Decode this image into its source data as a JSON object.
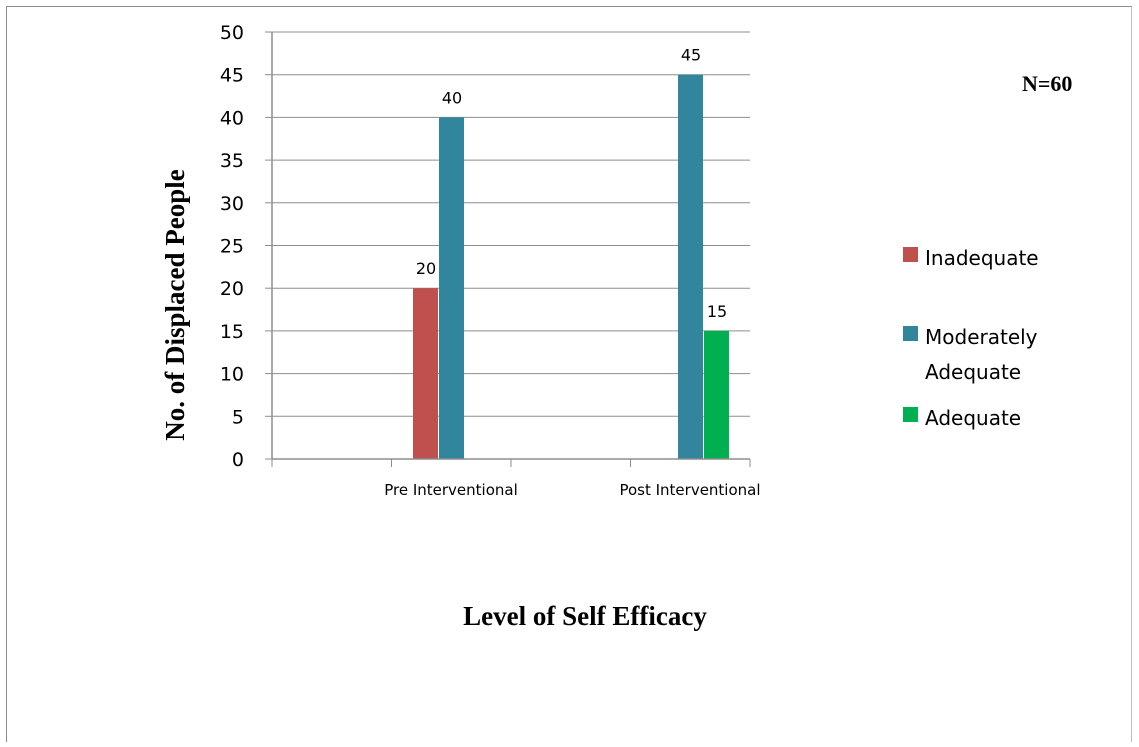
{
  "chart_data": {
    "type": "bar",
    "categories": [
      "Pre Interventional",
      "Post Interventional"
    ],
    "series": [
      {
        "name": "Inadequate",
        "values": [
          20,
          0
        ],
        "color": "#c0504d",
        "labels": [
          "20",
          ""
        ]
      },
      {
        "name": "Moderately Adequate",
        "values": [
          40,
          45
        ],
        "color": "#31859c",
        "labels": [
          "40",
          "45"
        ]
      },
      {
        "name": "Adequate",
        "values": [
          0,
          15
        ],
        "color": "#00b050",
        "labels": [
          "",
          "15"
        ]
      }
    ],
    "legend_lines": [
      [
        "Inadequate"
      ],
      [
        "Moderately",
        "Adequate"
      ],
      [
        "Adequate"
      ]
    ],
    "xlabel": "Level of Self Efficacy",
    "ylabel": "No. of Displaced People",
    "ylim": [
      0,
      50
    ],
    "yticks": [
      0,
      5,
      10,
      15,
      20,
      25,
      30,
      35,
      40,
      45,
      50
    ],
    "grid": true,
    "legend_position": "right",
    "annotation": "N=60"
  }
}
